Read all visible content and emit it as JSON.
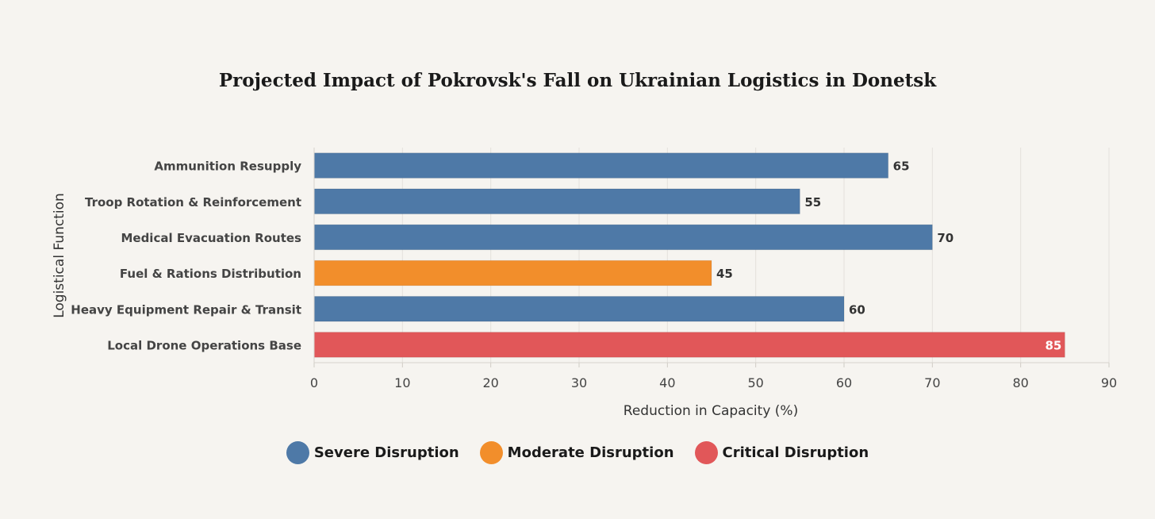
{
  "chart_data": {
    "type": "bar",
    "orientation": "horizontal",
    "title": "Projected Impact of Pokrovsk's Fall on Ukrainian Logistics in Donetsk",
    "xlabel": "Reduction in Capacity (%)",
    "ylabel": "Logistical Function",
    "xlim": [
      0,
      90
    ],
    "xticks": [
      0,
      10,
      20,
      30,
      40,
      50,
      60,
      70,
      80,
      90
    ],
    "grid": true,
    "categories": [
      "Ammunition Resupply",
      "Troop Rotation & Reinforcement",
      "Medical Evacuation Routes",
      "Fuel & Rations Distribution",
      "Heavy Equipment Repair & Transit",
      "Local Drone Operations Base"
    ],
    "values": [
      65,
      55,
      70,
      45,
      60,
      85
    ],
    "severity": [
      "severe",
      "severe",
      "severe",
      "moderate",
      "severe",
      "critical"
    ],
    "legend": [
      {
        "key": "severe",
        "label": "Severe Disruption",
        "color": "#4e79a7"
      },
      {
        "key": "moderate",
        "label": "Moderate Disruption",
        "color": "#f28e2b"
      },
      {
        "key": "critical",
        "label": "Critical Disruption",
        "color": "#e15759"
      }
    ],
    "legend_position": "bottom"
  }
}
